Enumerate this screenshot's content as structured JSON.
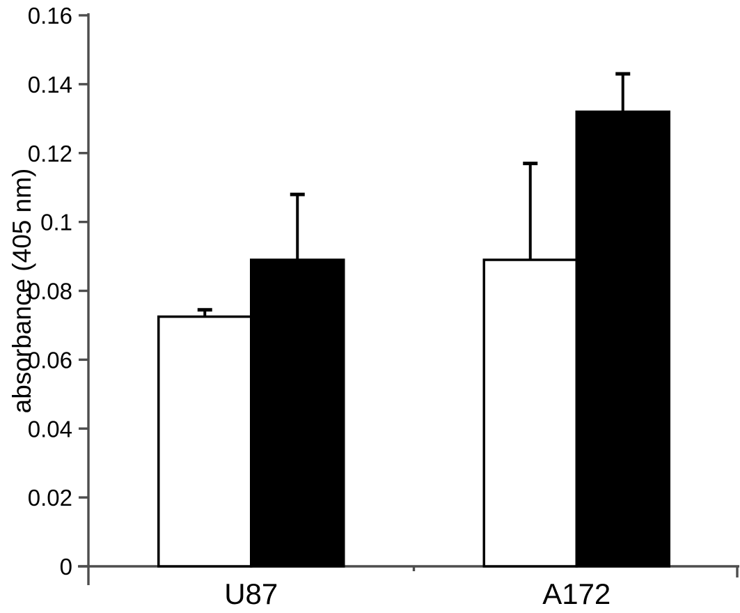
{
  "figure": {
    "description": "grouped bar chart with error bars"
  },
  "chart_data": {
    "type": "bar",
    "title": "",
    "xlabel": "",
    "ylabel": "absorbance (405 nm)",
    "categories": [
      "U87",
      "A172"
    ],
    "series": [
      {
        "name": "open",
        "fill": "#ffffff",
        "stroke": "#000000",
        "values": [
          0.0725,
          0.089
        ],
        "errors_plus": [
          0.002,
          0.028
        ]
      },
      {
        "name": "filled",
        "fill": "#000000",
        "stroke": "#000000",
        "values": [
          0.089,
          0.132
        ],
        "errors_plus": [
          0.019,
          0.011
        ]
      }
    ],
    "ylim": [
      0,
      0.16
    ],
    "yticks": [
      0,
      0.02,
      0.04,
      0.06,
      0.08,
      0.1,
      0.12,
      0.14,
      0.16
    ],
    "ytick_labels": [
      "0",
      "0.02",
      "0.04",
      "0.06",
      "0.08",
      "0.1",
      "0.12",
      "0.14",
      "0.16"
    ],
    "grid": false,
    "legend": "none",
    "error_bars": "upper-only",
    "colors": {
      "axis": "#4d4d4d",
      "bar_fill_dark": "#000000",
      "bar_fill_light": "#ffffff",
      "text": "#000000"
    }
  }
}
